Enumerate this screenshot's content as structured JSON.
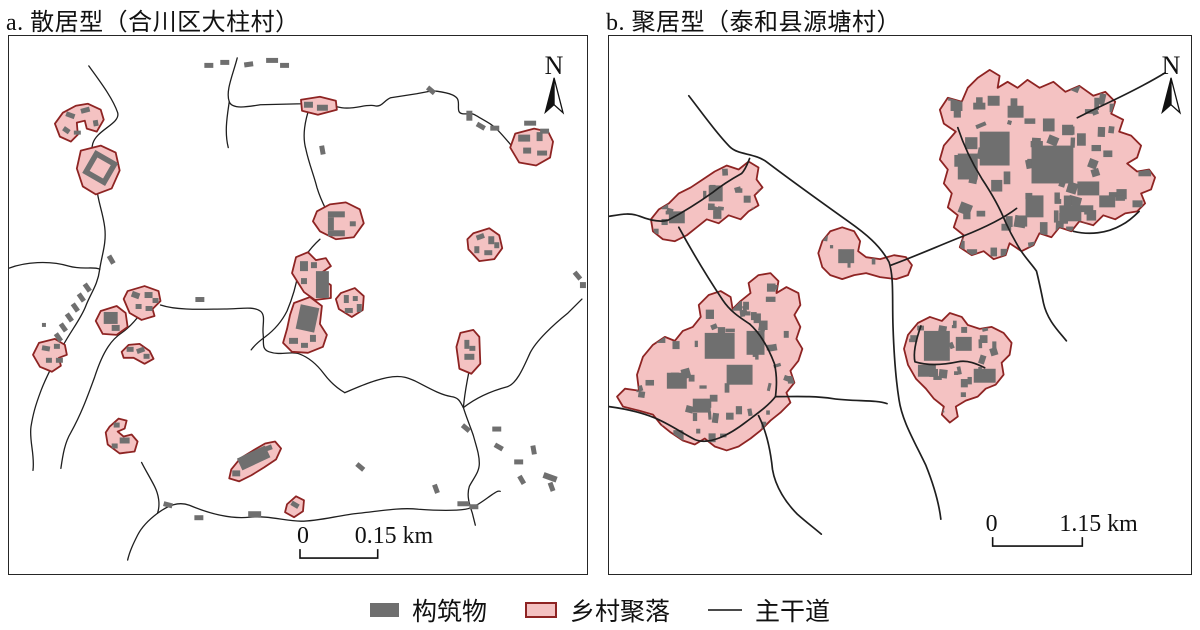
{
  "figure": {
    "panel_a": {
      "title": "a. 散居型（合川区大柱村）",
      "north_label": "N",
      "scale_zero": "0",
      "scale_label": "0.15 km"
    },
    "panel_b": {
      "title": "b. 聚居型（泰和县源塘村）",
      "north_label": "N",
      "scale_zero": "0",
      "scale_label": "1.15 km"
    },
    "legend": {
      "items": [
        {
          "label": "构筑物",
          "type": "building"
        },
        {
          "label": "乡村聚落",
          "type": "settlement"
        },
        {
          "label": "主干道",
          "type": "road"
        }
      ]
    },
    "colors": {
      "settlement_fill": "#F4C2C2",
      "settlement_border": "#8E2423",
      "building_gray": "#6F6F6F",
      "road_black": "#1F1F1F",
      "background": "#FFFFFF"
    }
  }
}
